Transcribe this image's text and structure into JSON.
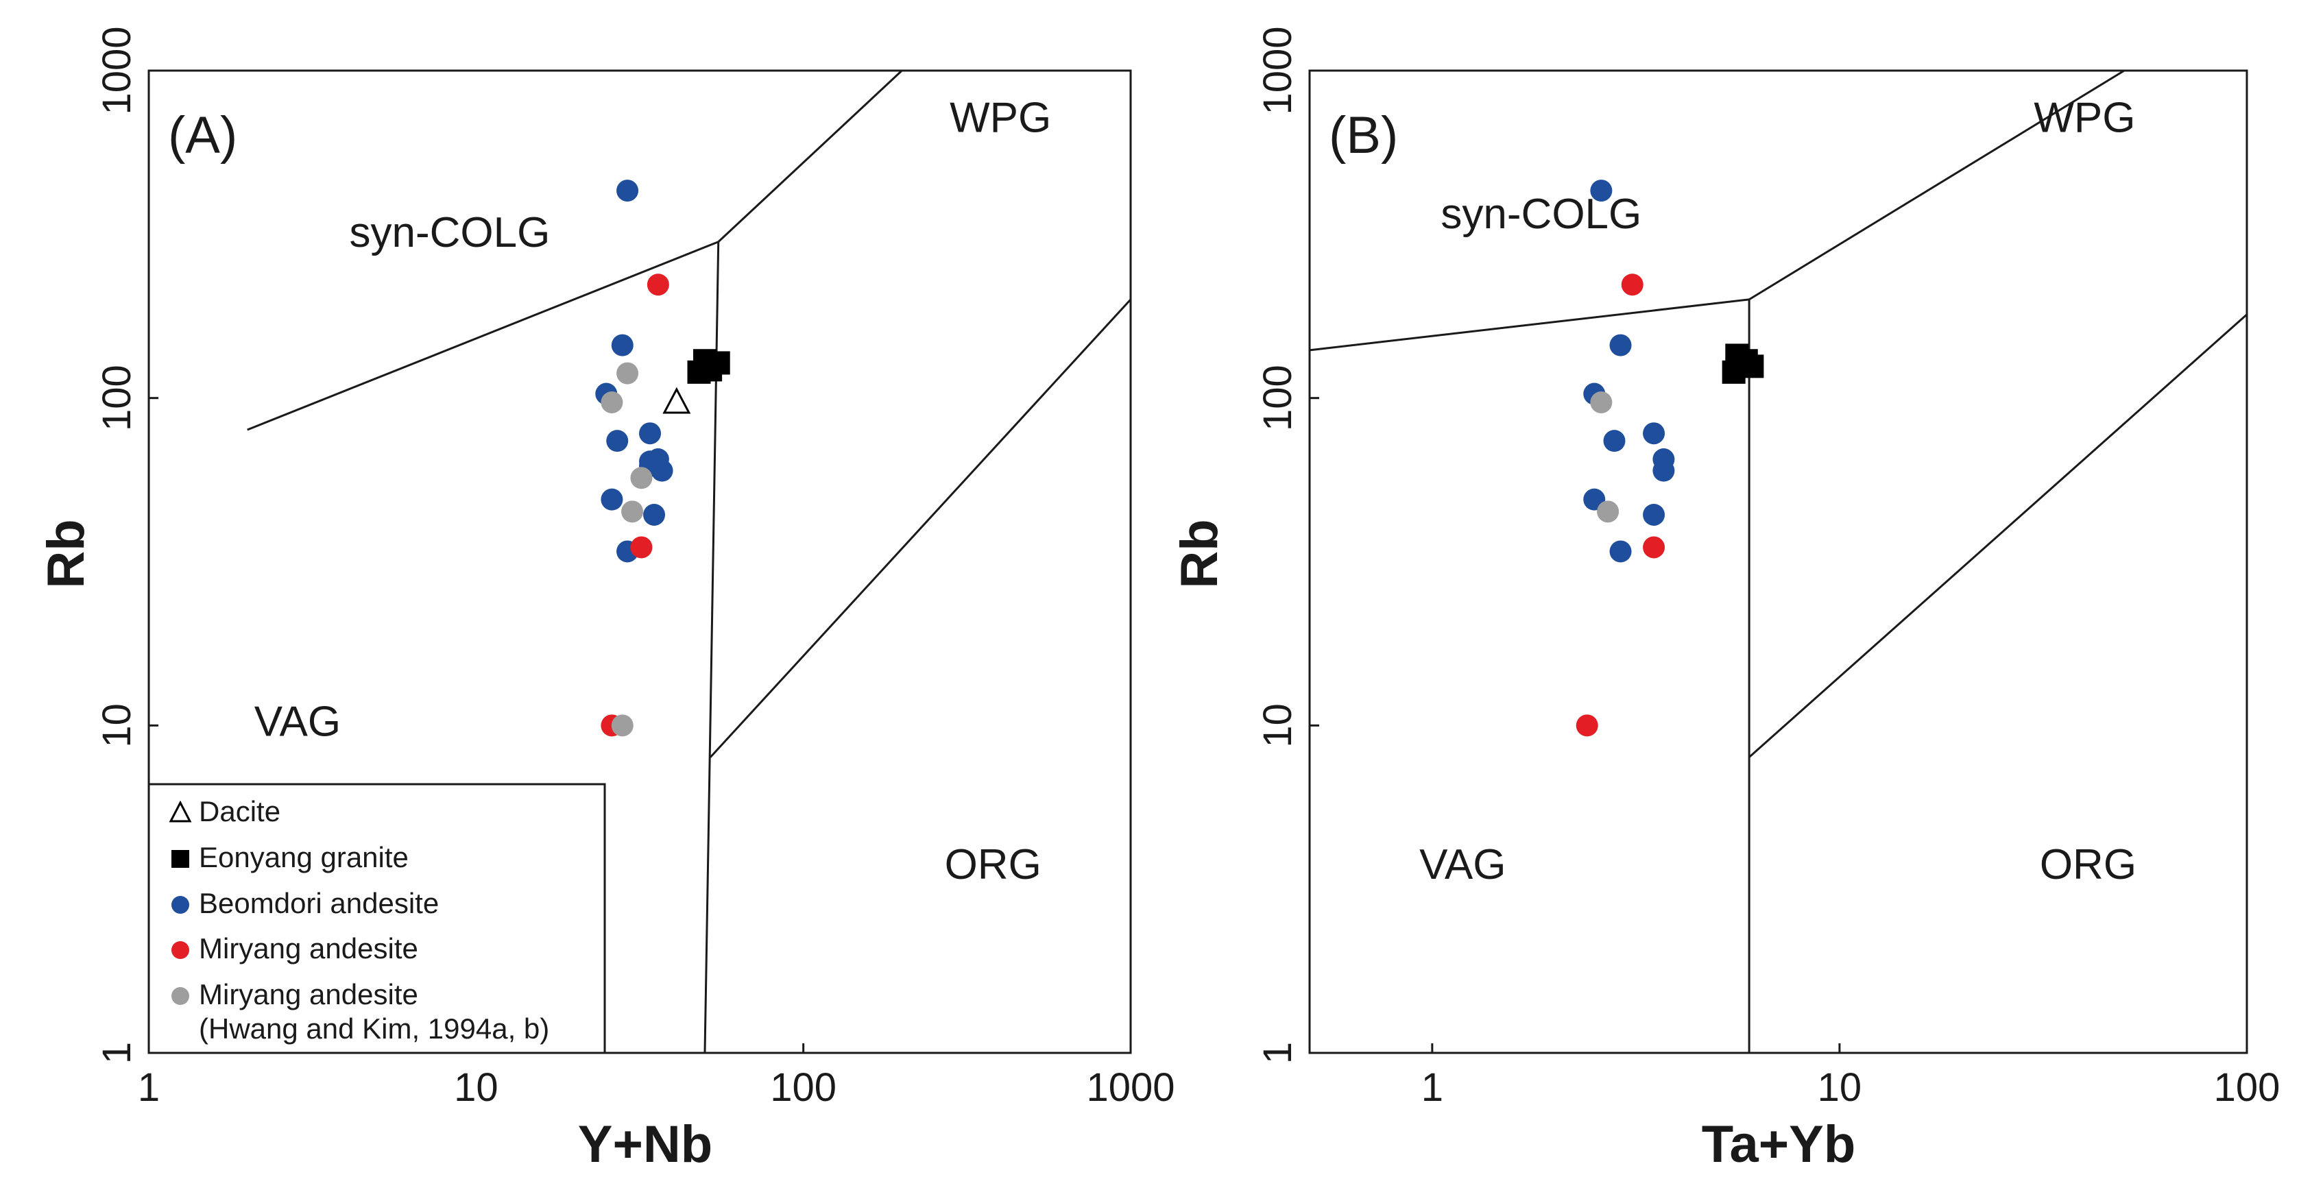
{
  "figure": {
    "marker_colors": {
      "dacite": "#000000",
      "eonyang": "#000000",
      "beomdori": "#1f4e9c",
      "miryang": "#e31e24",
      "miryang_hk": "#9e9e9e"
    },
    "legend": {
      "entries": [
        {
          "key": "dacite",
          "label": "Dacite"
        },
        {
          "key": "eonyang",
          "label": "Eonyang granite"
        },
        {
          "key": "beomdori",
          "label": "Beomdori andesite"
        },
        {
          "key": "miryang",
          "label": "Miryang andesite"
        },
        {
          "key": "miryang_hk",
          "label": "Miryang andesite",
          "label2": "(Hwang and Kim, 1994a, b)"
        }
      ]
    }
  },
  "chart_data": [
    {
      "type": "scatter",
      "panel_label": "(A)",
      "xlabel": "Y+Nb",
      "ylabel": "Rb",
      "xscale": "log",
      "yscale": "log",
      "xlim": [
        1,
        1000
      ],
      "ylim": [
        1,
        1000
      ],
      "xticks": [
        1,
        10,
        100,
        1000
      ],
      "xtick_labels": [
        "1",
        "10",
        "100",
        "1000"
      ],
      "yticks": [
        1,
        10,
        100,
        1000
      ],
      "ytick_labels": [
        "1",
        "10",
        "100",
        "1000"
      ],
      "region_labels": [
        {
          "text": "syn-COLG",
          "x": 4.1,
          "y": 290
        },
        {
          "text": "WPG",
          "x": 280,
          "y": 650
        },
        {
          "text": "VAG",
          "x": 2.1,
          "y": 9.3
        },
        {
          "text": "ORG",
          "x": 270,
          "y": 3.4
        }
      ],
      "boundaries": [
        [
          [
            2,
            80
          ],
          [
            55,
            300
          ]
        ],
        [
          [
            55,
            300
          ],
          [
            200,
            1000
          ]
        ],
        [
          [
            55,
            300
          ],
          [
            50,
            1
          ]
        ],
        [
          [
            52,
            8
          ],
          [
            1000,
            200
          ]
        ]
      ],
      "series": [
        {
          "key": "dacite",
          "marker": "triangle-open",
          "x": [
            41
          ],
          "y": [
            97
          ]
        },
        {
          "key": "eonyang",
          "marker": "square",
          "x": [
            50,
            55,
            48,
            52
          ],
          "y": [
            130,
            128,
            120,
            122
          ]
        },
        {
          "key": "beomdori",
          "marker": "circle",
          "x": [
            29,
            28,
            25,
            27,
            34,
            36,
            37,
            26,
            35,
            29,
            34,
            34
          ],
          "y": [
            430,
            145,
            103,
            74,
            78,
            65,
            60,
            49,
            44,
            34,
            62,
            64
          ]
        },
        {
          "key": "miryang",
          "marker": "circle",
          "x": [
            36,
            32,
            26
          ],
          "y": [
            222,
            35,
            10
          ]
        },
        {
          "key": "miryang_hk",
          "marker": "circle",
          "x": [
            29,
            26,
            32,
            30,
            28
          ],
          "y": [
            119,
            97,
            57,
            45,
            10
          ]
        }
      ]
    },
    {
      "type": "scatter",
      "panel_label": "(B)",
      "xlabel": "Ta+Yb",
      "ylabel": "Rb",
      "xscale": "log",
      "yscale": "log",
      "xlim": [
        0.5,
        100
      ],
      "ylim": [
        1,
        1000
      ],
      "xticks": [
        1,
        10,
        100
      ],
      "xtick_labels": [
        "1",
        "10",
        "100"
      ],
      "yticks": [
        1,
        10,
        100,
        1000
      ],
      "ytick_labels": [
        "1",
        "10",
        "100",
        "1000"
      ],
      "region_labels": [
        {
          "text": "syn-COLG",
          "x": 1.05,
          "y": 330
        },
        {
          "text": "WPG",
          "x": 30,
          "y": 650
        },
        {
          "text": "VAG",
          "x": 0.93,
          "y": 3.4
        },
        {
          "text": "ORG",
          "x": 31,
          "y": 3.4
        }
      ],
      "boundaries": [
        [
          [
            0.5,
            140
          ],
          [
            6,
            200
          ]
        ],
        [
          [
            6,
            200
          ],
          [
            50,
            1000
          ]
        ],
        [
          [
            6,
            200
          ],
          [
            6,
            1
          ]
        ],
        [
          [
            6,
            8
          ],
          [
            100,
            180
          ]
        ]
      ],
      "series": [
        {
          "key": "eonyang",
          "marker": "square",
          "x": [
            5.6,
            5.9,
            6.1,
            5.5
          ],
          "y": [
            135,
            130,
            125,
            120
          ]
        },
        {
          "key": "beomdori",
          "marker": "circle",
          "x": [
            2.6,
            2.9,
            2.5,
            2.8,
            3.5,
            3.7,
            3.7,
            2.5,
            3.5,
            2.9
          ],
          "y": [
            430,
            145,
            103,
            74,
            78,
            65,
            60,
            49,
            44,
            34
          ]
        },
        {
          "key": "miryang",
          "marker": "circle",
          "x": [
            3.1,
            3.5,
            2.4
          ],
          "y": [
            222,
            35,
            10
          ]
        },
        {
          "key": "miryang_hk",
          "marker": "circle",
          "x": [
            2.6,
            2.7
          ],
          "y": [
            97,
            45
          ]
        }
      ]
    }
  ]
}
